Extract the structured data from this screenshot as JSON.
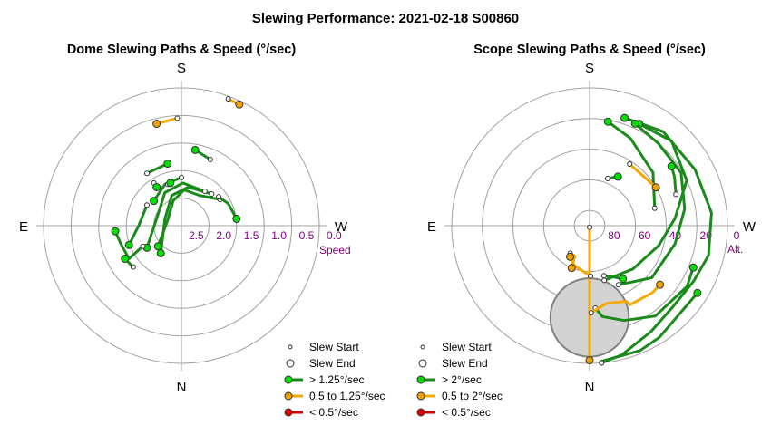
{
  "title": "Slewing Performance: 2021-02-18 S00860",
  "colors": {
    "fast": "#00dd00",
    "fast_line": "#1a8a1a",
    "medium": "#f0a000",
    "medium_line": "#f5a800",
    "slow": "#dd0000",
    "slow_line": "#cc0000",
    "grid": "#a0a0a0",
    "tick": "#800080",
    "sun_fill": "#d3d3d3",
    "sun_stroke": "#808080"
  },
  "chart_data": [
    {
      "type": "polar-scatter",
      "title": "Dome Slewing Paths & Speed (°/sec)",
      "directions": {
        "top": "S",
        "bottom": "N",
        "left": "E",
        "right": "W"
      },
      "radial_axis": {
        "label": "Speed",
        "ticks": [
          "2.5",
          "2.0",
          "1.5",
          "1.0",
          "0.5",
          "0.0"
        ],
        "range": [
          2.5,
          0.0
        ]
      },
      "legend": [
        {
          "kind": "start",
          "label": "Slew Start"
        },
        {
          "kind": "end",
          "label": "Slew End"
        },
        {
          "kind": "fast",
          "label": "> 1.25°/sec"
        },
        {
          "kind": "medium",
          "label": "0.5 to 1.25°/sec"
        },
        {
          "kind": "slow",
          "label": "< 0.5°/sec"
        }
      ],
      "slews": [
        {
          "class": "fast",
          "path": [
            [
              -0.28,
              0.19
            ],
            [
              -0.13,
              0.22
            ],
            [
              -0.02,
              0.26
            ],
            [
              0.06,
              0.18
            ],
            [
              0.1,
              0.04
            ],
            [
              0.17,
              -0.15
            ]
          ]
        },
        {
          "class": "fast",
          "path": [
            [
              -0.22,
              0.23
            ],
            [
              -0.05,
              0.28
            ],
            [
              0.07,
              0.22
            ],
            [
              0.12,
              0.05
            ],
            [
              0.15,
              -0.2
            ]
          ]
        },
        {
          "class": "fast",
          "path": [
            [
              -0.17,
              0.25
            ],
            [
              -0.01,
              0.31
            ],
            [
              0.12,
              0.24
            ],
            [
              0.18,
              0.05
            ],
            [
              0.25,
              -0.16
            ]
          ]
        },
        {
          "class": "fast",
          "path": [
            [
              0.0,
              0.35
            ],
            [
              0.12,
              0.3
            ],
            [
              0.2,
              0.18
            ]
          ]
        },
        {
          "class": "fast",
          "path": [
            [
              -0.21,
              0.48
            ],
            [
              -0.1,
              0.55
            ]
          ]
        },
        {
          "class": "fast",
          "path": [
            [
              -0.27,
              0.21
            ],
            [
              -0.34,
              0.16
            ],
            [
              -0.4,
              0.05
            ]
          ]
        },
        {
          "class": "fast",
          "path": [
            [
              0.28,
              -0.15
            ],
            [
              0.38,
              -0.24
            ],
            [
              0.44,
              -0.13
            ],
            [
              0.48,
              -0.04
            ]
          ]
        },
        {
          "class": "fast",
          "path": [
            [
              0.35,
              -0.3
            ],
            [
              0.41,
              -0.24
            ]
          ]
        },
        {
          "class": "fast",
          "path": [
            [
              0.1,
              0.3
            ],
            [
              0.08,
              0.31
            ]
          ]
        },
        {
          "class": "fast",
          "path": [
            [
              0.2,
              0.31
            ],
            [
              0.18,
              0.28
            ]
          ]
        },
        {
          "class": "fast",
          "path": [
            [
              0.25,
              0.15
            ],
            [
              0.31,
              0.0
            ],
            [
              0.38,
              -0.14
            ]
          ]
        },
        {
          "class": "fast",
          "path": [
            [
              0.25,
              0.38
            ],
            [
              0.1,
              0.45
            ]
          ]
        },
        {
          "class": "medium",
          "path": [
            [
              0.03,
              0.78
            ],
            [
              0.18,
              0.74
            ]
          ]
        },
        {
          "class": "medium",
          "path": [
            [
              -0.34,
              0.92
            ],
            [
              -0.42,
              0.88
            ]
          ]
        }
      ]
    },
    {
      "type": "polar-scatter",
      "title": "Scope Slewing Paths & Speed (°/sec)",
      "directions": {
        "top": "S",
        "bottom": "N",
        "left": "E",
        "right": "W"
      },
      "radial_axis": {
        "label": "Alt.",
        "ticks": [
          "80",
          "60",
          "40",
          "20",
          "0"
        ],
        "range": [
          90,
          0
        ]
      },
      "legend": [
        {
          "kind": "start",
          "label": "Slew Start"
        },
        {
          "kind": "end",
          "label": "Slew End"
        },
        {
          "kind": "fast",
          "label": "> 2°/sec"
        },
        {
          "kind": "medium",
          "label": "0.5 to 2°/sec"
        },
        {
          "kind": "slow",
          "label": "< 0.5°/sec"
        }
      ],
      "sun": {
        "az": 0,
        "alt": 30,
        "radius_deg": 16
      },
      "slews": [
        {
          "class": "fast",
          "path": [
            [
              5,
              0
            ],
            [
              5,
              1
            ],
            [
              22,
              2
            ],
            [
              32,
              4
            ],
            [
              58,
              7
            ]
          ]
        },
        {
          "class": "fast",
          "path": [
            [
              5,
              0
            ],
            [
              14,
              3
            ],
            [
              30,
              10
            ],
            [
              45,
              14
            ],
            [
              62,
              13
            ],
            [
              76,
              10
            ],
            [
              96,
              10
            ],
            [
              118,
              12
            ],
            [
              142,
              12
            ],
            [
              162,
              16
            ]
          ]
        },
        {
          "class": "fast",
          "path": [
            [
              15,
              53
            ],
            [
              45,
              50
            ],
            [
              74,
              43
            ],
            [
              95,
              34
            ],
            [
              115,
              20
            ],
            [
              136,
              13
            ],
            [
              154,
              16
            ]
          ]
        },
        {
          "class": "fast",
          "path": [
            [
              26,
              47
            ],
            [
              50,
              37
            ],
            [
              78,
              33
            ],
            [
              100,
              27
            ],
            [
              120,
              21
            ],
            [
              140,
              20
            ],
            [
              156,
              17
            ]
          ]
        },
        {
          "class": "fast",
          "path": [
            [
              105,
              46
            ],
            [
              130,
              36
            ],
            [
              155,
              27
            ],
            [
              170,
              21
            ]
          ]
        },
        {
          "class": "fast",
          "path": [
            [
              16,
              56
            ],
            [
              27,
              52
            ],
            [
              32,
              49
            ]
          ]
        },
        {
          "class": "fast",
          "path": [
            [
              110,
              30
            ],
            [
              120,
              26
            ],
            [
              126,
              24
            ]
          ]
        },
        {
          "class": "fast",
          "path": [
            [
              159,
              57
            ],
            [
              150,
              53
            ]
          ]
        },
        {
          "class": "fast",
          "path": [
            [
              4,
              36
            ],
            [
              8,
              30
            ],
            [
              20,
              24
            ],
            [
              36,
              17
            ],
            [
              58,
              15
            ],
            [
              68,
              17
            ]
          ]
        },
        {
          "class": "medium",
          "path": [
            [
              0,
              89
            ],
            [
              0,
              80
            ],
            [
              0,
              70
            ],
            [
              0,
              60
            ],
            [
              0,
              52
            ],
            [
              0,
              42
            ],
            [
              0,
              28
            ],
            [
              0,
              8
            ],
            [
              0,
              2
            ]
          ]
        },
        {
          "class": "medium",
          "path": [
            [
              1,
              33
            ],
            [
              12,
              38
            ],
            [
              26,
              35
            ],
            [
              27,
              32
            ],
            [
              43,
              30
            ],
            [
              50,
              30
            ]
          ]
        },
        {
          "class": "medium",
          "path": [
            [
              1,
              57
            ],
            [
              340,
              62
            ],
            [
              330,
              65
            ],
            [
              324,
              68
            ],
            [
              334,
              68
            ],
            [
              337,
              60
            ]
          ]
        },
        {
          "class": "medium",
          "path": [
            [
              147,
              42
            ],
            [
              130,
              42
            ],
            [
              120,
              40
            ]
          ]
        },
        {
          "class": "medium",
          "path": [
            [
              325,
              68
            ],
            [
              328,
              66
            ]
          ]
        }
      ]
    }
  ]
}
